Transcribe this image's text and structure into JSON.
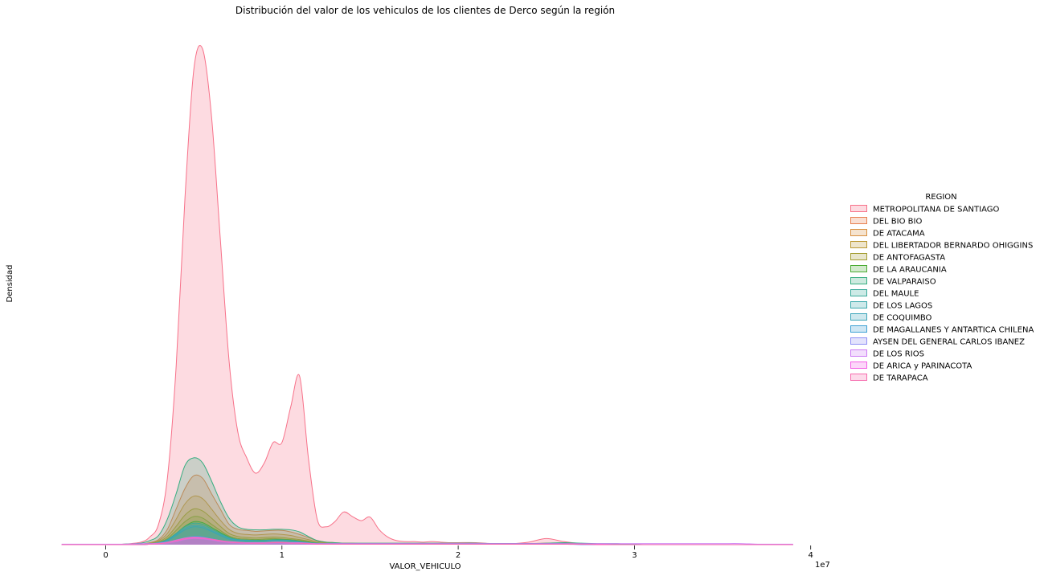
{
  "chart_data": {
    "type": "area",
    "title": "Distribución del valor de los vehiculos de los clientes de Derco según la región",
    "xlabel": "VALOR_VEHICULO",
    "ylabel": "Densidad",
    "x_offset_label": "1e7",
    "x_ticks": [
      0,
      1,
      2,
      3,
      4
    ],
    "x_tick_labels": [
      "0",
      "1",
      "2",
      "3",
      "4"
    ],
    "xlim": [
      -0.28,
      4.0
    ],
    "ylim": [
      0,
      1.0
    ],
    "y_ticks_visible": false,
    "grid": false,
    "legend": {
      "title": "REGION",
      "placement": "right"
    },
    "x": [
      -0.25,
      0.0,
      0.1,
      0.2,
      0.25,
      0.3,
      0.35,
      0.4,
      0.45,
      0.5,
      0.55,
      0.6,
      0.65,
      0.7,
      0.75,
      0.8,
      0.85,
      0.9,
      0.95,
      1.0,
      1.05,
      1.1,
      1.15,
      1.2,
      1.25,
      1.3,
      1.35,
      1.4,
      1.45,
      1.5,
      1.55,
      1.6,
      1.65,
      1.7,
      1.75,
      1.8,
      1.85,
      1.9,
      1.95,
      2.0,
      2.1,
      2.2,
      2.3,
      2.4,
      2.5,
      2.6,
      2.7,
      2.8,
      2.9,
      2.95,
      3.0,
      3.05,
      3.1,
      3.15,
      3.2,
      3.25,
      3.3,
      3.35,
      3.4,
      3.5,
      3.6,
      3.7,
      3.8,
      3.9
    ],
    "series": [
      {
        "name": "METROPOLITANA DE SANTIAGO",
        "color": "#f77189",
        "type": "kde",
        "values": [
          0,
          0,
          0.001,
          0.005,
          0.015,
          0.04,
          0.13,
          0.35,
          0.68,
          0.93,
          0.97,
          0.84,
          0.6,
          0.36,
          0.22,
          0.17,
          0.14,
          0.16,
          0.2,
          0.2,
          0.27,
          0.33,
          0.17,
          0.05,
          0.035,
          0.045,
          0.064,
          0.055,
          0.047,
          0.054,
          0.03,
          0.015,
          0.008,
          0.006,
          0.006,
          0.005,
          0.006,
          0.005,
          0.004,
          0.004,
          0.004,
          0.002,
          0.002,
          0.005,
          0.012,
          0.006,
          0.002,
          0.001,
          0.001,
          0,
          0,
          0,
          0,
          0,
          0,
          0,
          0,
          0,
          0,
          0,
          0,
          0,
          0,
          0
        ]
      },
      {
        "name": "DEL BIO BIO",
        "color": "#e8804f",
        "type": "kde",
        "values": [
          0,
          0,
          0,
          0.001,
          0.004,
          0.01,
          0.03,
          0.07,
          0.11,
          0.135,
          0.13,
          0.1,
          0.07,
          0.04,
          0.03,
          0.028,
          0.026,
          0.027,
          0.028,
          0.028,
          0.025,
          0.02,
          0.014,
          0.008,
          0.005,
          0.004,
          0.003,
          0.003,
          0.002,
          0.002,
          0.002,
          0.002,
          0.002,
          0.002,
          0.002,
          0.002,
          0.002,
          0.002,
          0.002,
          0.002,
          0.002,
          0.002,
          0.002,
          0.002,
          0.003,
          0.003,
          0.002,
          0.001,
          0.001,
          0.001,
          0,
          0,
          0,
          0,
          0,
          0,
          0,
          0,
          0,
          0,
          0,
          0,
          0,
          0
        ]
      },
      {
        "name": "DE ATACAMA",
        "color": "#d89040",
        "type": "kde",
        "values": [
          0,
          0,
          0,
          0.001,
          0.003,
          0.008,
          0.022,
          0.05,
          0.08,
          0.095,
          0.09,
          0.07,
          0.048,
          0.03,
          0.022,
          0.02,
          0.019,
          0.02,
          0.021,
          0.02,
          0.018,
          0.014,
          0.01,
          0.006,
          0.004,
          0.003,
          0.002,
          0.002,
          0.002,
          0.002,
          0.002,
          0.002,
          0.002,
          0.002,
          0.002,
          0.002,
          0.002,
          0.002,
          0.002,
          0.002,
          0.002,
          0.002,
          0.002,
          0.002,
          0.002,
          0.002,
          0.002,
          0.001,
          0.001,
          0.001,
          0,
          0,
          0,
          0,
          0,
          0,
          0,
          0,
          0,
          0,
          0,
          0,
          0,
          0
        ]
      },
      {
        "name": "DEL LIBERTADOR BERNARDO OHIGGINS",
        "color": "#bb9832",
        "type": "kde",
        "values": [
          0,
          0,
          0,
          0.001,
          0.002,
          0.006,
          0.016,
          0.036,
          0.058,
          0.07,
          0.066,
          0.052,
          0.036,
          0.022,
          0.016,
          0.014,
          0.013,
          0.014,
          0.015,
          0.014,
          0.012,
          0.01,
          0.007,
          0.004,
          0.003,
          0.002,
          0.002,
          0.002,
          0.002,
          0.002,
          0.002,
          0.002,
          0.002,
          0.002,
          0.002,
          0.002,
          0.002,
          0.002,
          0.002,
          0.002,
          0.002,
          0.002,
          0.002,
          0.002,
          0.002,
          0.002,
          0.001,
          0.001,
          0,
          0,
          0,
          0,
          0,
          0,
          0,
          0,
          0,
          0,
          0,
          0,
          0,
          0,
          0,
          0
        ]
      },
      {
        "name": "DE ANTOFAGASTA",
        "color": "#a39d32",
        "type": "kde",
        "values": [
          0,
          0,
          0,
          0.001,
          0.002,
          0.005,
          0.012,
          0.028,
          0.045,
          0.055,
          0.052,
          0.04,
          0.028,
          0.017,
          0.012,
          0.011,
          0.01,
          0.011,
          0.012,
          0.011,
          0.01,
          0.008,
          0.006,
          0.003,
          0.002,
          0.002,
          0.002,
          0.002,
          0.002,
          0.002,
          0.002,
          0.002,
          0.002,
          0.002,
          0.002,
          0.002,
          0.002,
          0.002,
          0.002,
          0.002,
          0.002,
          0.002,
          0.002,
          0.002,
          0.002,
          0.002,
          0.001,
          0.001,
          0,
          0,
          0,
          0,
          0,
          0,
          0,
          0,
          0,
          0,
          0,
          0,
          0,
          0,
          0,
          0
        ]
      },
      {
        "name": "DE LA ARAUCANIA",
        "color": "#4aab32",
        "type": "kde",
        "values": [
          0,
          0,
          0,
          0.001,
          0.002,
          0.004,
          0.01,
          0.022,
          0.036,
          0.045,
          0.043,
          0.034,
          0.024,
          0.015,
          0.01,
          0.009,
          0.009,
          0.009,
          0.01,
          0.01,
          0.009,
          0.007,
          0.005,
          0.003,
          0.002,
          0.002,
          0.002,
          0.002,
          0.002,
          0.002,
          0.002,
          0.002,
          0.002,
          0.002,
          0.002,
          0.002,
          0.002,
          0.002,
          0.002,
          0.002,
          0.002,
          0.002,
          0.002,
          0.002,
          0.002,
          0.002,
          0.001,
          0.001,
          0,
          0,
          0,
          0,
          0,
          0,
          0,
          0,
          0,
          0,
          0,
          0,
          0,
          0,
          0,
          0
        ]
      },
      {
        "name": "DE VALPARAISO",
        "color": "#36ad80",
        "type": "kde",
        "values": [
          0,
          0,
          0.001,
          0.003,
          0.008,
          0.018,
          0.05,
          0.1,
          0.155,
          0.17,
          0.16,
          0.125,
          0.085,
          0.052,
          0.035,
          0.03,
          0.029,
          0.029,
          0.03,
          0.03,
          0.029,
          0.025,
          0.016,
          0.008,
          0.005,
          0.004,
          0.003,
          0.003,
          0.003,
          0.003,
          0.003,
          0.003,
          0.003,
          0.003,
          0.003,
          0.003,
          0.003,
          0.003,
          0.003,
          0.003,
          0.003,
          0.002,
          0.002,
          0.002,
          0.003,
          0.004,
          0.003,
          0.002,
          0.002,
          0.001,
          0.001,
          0,
          0,
          0,
          0,
          0,
          0,
          0,
          0,
          0,
          0,
          0,
          0,
          0
        ]
      },
      {
        "name": "DEL MAULE",
        "color": "#38aa9a",
        "type": "kde",
        "values": [
          0,
          0,
          0,
          0.001,
          0.002,
          0.004,
          0.01,
          0.022,
          0.035,
          0.042,
          0.04,
          0.031,
          0.022,
          0.014,
          0.01,
          0.009,
          0.008,
          0.008,
          0.009,
          0.009,
          0.008,
          0.006,
          0.004,
          0.003,
          0.002,
          0.002,
          0.002,
          0.002,
          0.002,
          0.002,
          0.002,
          0.002,
          0.002,
          0.002,
          0.002,
          0.002,
          0.002,
          0.002,
          0.002,
          0.002,
          0.002,
          0.002,
          0.002,
          0.002,
          0.002,
          0.002,
          0.001,
          0.001,
          0,
          0,
          0,
          0,
          0,
          0,
          0,
          0,
          0,
          0,
          0,
          0,
          0,
          0,
          0,
          0
        ]
      },
      {
        "name": "DE LOS LAGOS",
        "color": "#3aa8ab",
        "type": "kde",
        "values": [
          0,
          0,
          0,
          0.001,
          0.002,
          0.003,
          0.008,
          0.018,
          0.029,
          0.035,
          0.033,
          0.026,
          0.018,
          0.011,
          0.008,
          0.007,
          0.007,
          0.007,
          0.008,
          0.008,
          0.007,
          0.005,
          0.004,
          0.002,
          0.002,
          0.002,
          0.002,
          0.002,
          0.002,
          0.002,
          0.002,
          0.002,
          0.002,
          0.002,
          0.002,
          0.002,
          0.002,
          0.002,
          0.002,
          0.002,
          0.002,
          0.002,
          0.002,
          0.002,
          0.002,
          0.002,
          0.001,
          0.001,
          0,
          0,
          0,
          0,
          0,
          0,
          0,
          0,
          0,
          0,
          0,
          0,
          0,
          0,
          0,
          0
        ]
      },
      {
        "name": "DE COQUIMBO",
        "color": "#3ca5ba",
        "type": "kde",
        "values": [
          0,
          0,
          0,
          0.001,
          0.002,
          0.004,
          0.009,
          0.02,
          0.032,
          0.038,
          0.036,
          0.028,
          0.02,
          0.012,
          0.009,
          0.008,
          0.008,
          0.008,
          0.009,
          0.009,
          0.008,
          0.006,
          0.004,
          0.002,
          0.002,
          0.002,
          0.002,
          0.002,
          0.002,
          0.002,
          0.002,
          0.002,
          0.002,
          0.002,
          0.002,
          0.002,
          0.002,
          0.002,
          0.002,
          0.002,
          0.002,
          0.002,
          0.002,
          0.002,
          0.002,
          0.002,
          0.001,
          0.001,
          0,
          0,
          0,
          0,
          0,
          0,
          0,
          0,
          0,
          0,
          0,
          0,
          0,
          0,
          0,
          0
        ]
      },
      {
        "name": "DE MAGALLANES Y ANTARTICA CHILENA",
        "color": "#3ea1d4",
        "type": "kde",
        "values": [
          0,
          0,
          0,
          0,
          0.001,
          0.002,
          0.004,
          0.008,
          0.013,
          0.016,
          0.015,
          0.012,
          0.008,
          0.005,
          0.004,
          0.003,
          0.003,
          0.003,
          0.004,
          0.004,
          0.003,
          0.003,
          0.002,
          0.001,
          0.001,
          0.001,
          0.001,
          0.001,
          0.001,
          0.001,
          0.001,
          0.001,
          0.001,
          0.001,
          0.001,
          0.001,
          0.001,
          0.001,
          0.001,
          0.001,
          0.001,
          0.001,
          0.001,
          0.001,
          0.001,
          0.001,
          0.001,
          0,
          0,
          0,
          0,
          0,
          0,
          0,
          0,
          0,
          0,
          0,
          0,
          0,
          0,
          0,
          0,
          0
        ]
      },
      {
        "name": "AYSEN DEL GENERAL CARLOS IBANEZ",
        "color": "#8e8ff5",
        "type": "kde",
        "values": [
          0,
          0,
          0,
          0,
          0.001,
          0.001,
          0.003,
          0.006,
          0.01,
          0.012,
          0.011,
          0.009,
          0.006,
          0.004,
          0.003,
          0.002,
          0.002,
          0.002,
          0.003,
          0.003,
          0.002,
          0.002,
          0.001,
          0.001,
          0.001,
          0.001,
          0.001,
          0.001,
          0.001,
          0.001,
          0.001,
          0.001,
          0.001,
          0.001,
          0.001,
          0.001,
          0.001,
          0.001,
          0.001,
          0.001,
          0.001,
          0.001,
          0.001,
          0.001,
          0.001,
          0.001,
          0,
          0,
          0,
          0,
          0,
          0,
          0,
          0,
          0,
          0,
          0,
          0,
          0,
          0,
          0,
          0,
          0,
          0
        ]
      },
      {
        "name": "DE LOS RIOS",
        "color": "#cc7af4",
        "type": "kde",
        "values": [
          0.001,
          0.001,
          0.001,
          0.002,
          0.002,
          0.003,
          0.005,
          0.009,
          0.013,
          0.015,
          0.014,
          0.011,
          0.008,
          0.006,
          0.005,
          0.004,
          0.004,
          0.004,
          0.005,
          0.005,
          0.004,
          0.004,
          0.003,
          0.002,
          0.002,
          0.002,
          0.002,
          0.002,
          0.002,
          0.002,
          0.002,
          0.002,
          0.002,
          0.002,
          0.002,
          0.002,
          0.002,
          0.002,
          0.002,
          0.002,
          0.002,
          0.002,
          0.002,
          0.002,
          0.002,
          0.002,
          0.002,
          0.002,
          0.002,
          0.002,
          0.002,
          0.002,
          0.002,
          0.002,
          0.002,
          0.002,
          0.002,
          0.002,
          0.002,
          0.002,
          0.002,
          0.001,
          0.001,
          0.001
        ]
      },
      {
        "name": "DE ARICA y PARINACOTA",
        "color": "#f45fe7",
        "type": "kde",
        "values": [
          0,
          0,
          0,
          0,
          0.001,
          0.002,
          0.004,
          0.007,
          0.011,
          0.013,
          0.012,
          0.01,
          0.007,
          0.005,
          0.004,
          0.003,
          0.003,
          0.003,
          0.004,
          0.004,
          0.003,
          0.003,
          0.002,
          0.001,
          0.001,
          0.001,
          0.001,
          0.001,
          0.001,
          0.001,
          0.001,
          0.001,
          0.001,
          0.001,
          0.001,
          0.001,
          0.001,
          0.001,
          0.001,
          0.001,
          0.001,
          0.001,
          0.001,
          0.001,
          0.001,
          0.001,
          0.001,
          0.001,
          0,
          0,
          0,
          0,
          0,
          0,
          0,
          0,
          0,
          0,
          0,
          0,
          0,
          0,
          0,
          0
        ]
      },
      {
        "name": "DE TARAPACA",
        "color": "#f66bad",
        "type": "kde",
        "values": [
          0,
          0,
          0,
          0,
          0.001,
          0.002,
          0.004,
          0.008,
          0.012,
          0.014,
          0.013,
          0.011,
          0.008,
          0.005,
          0.004,
          0.003,
          0.003,
          0.003,
          0.004,
          0.004,
          0.003,
          0.003,
          0.002,
          0.001,
          0.001,
          0.001,
          0.001,
          0.001,
          0.001,
          0.001,
          0.001,
          0.001,
          0.001,
          0.001,
          0.001,
          0.001,
          0.001,
          0.001,
          0.001,
          0.001,
          0.001,
          0.001,
          0.001,
          0.001,
          0.001,
          0.001,
          0.001,
          0,
          0,
          0,
          0,
          0,
          0,
          0,
          0,
          0,
          0,
          0,
          0,
          0,
          0,
          0,
          0,
          0
        ]
      }
    ]
  }
}
